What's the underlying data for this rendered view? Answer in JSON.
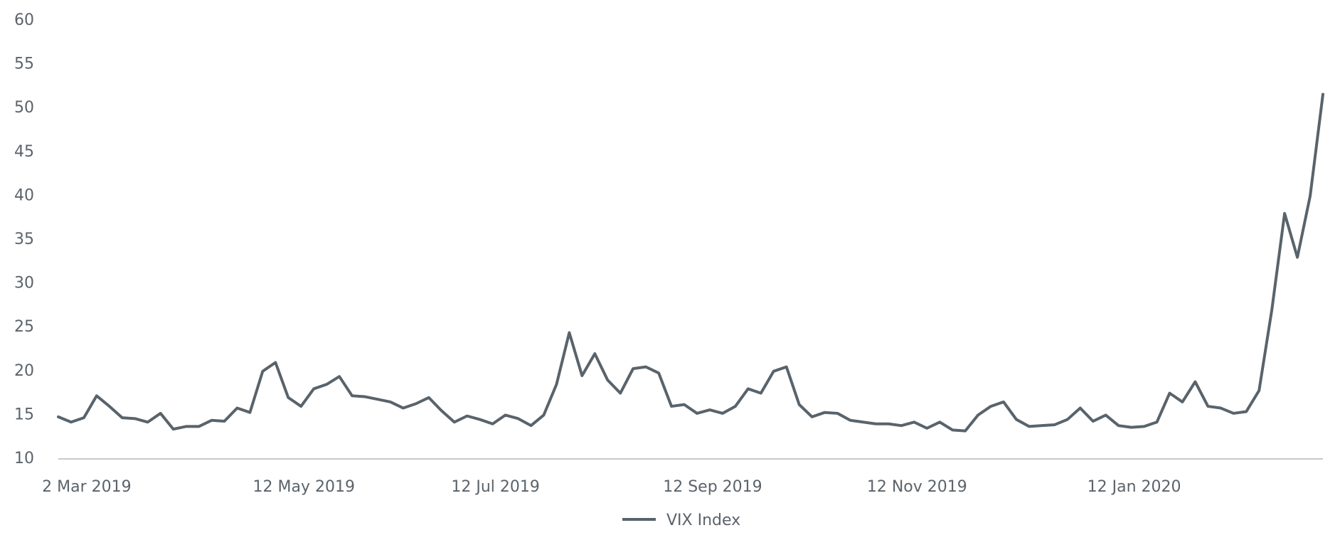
{
  "chart_data": {
    "type": "line",
    "categories": [
      null,
      null,
      "2 Mar 2019",
      null,
      null,
      null,
      null,
      null,
      null,
      null,
      null,
      null,
      null,
      null,
      null,
      null,
      null,
      null,
      null,
      "12 May 2019",
      null,
      null,
      null,
      null,
      null,
      null,
      null,
      null,
      null,
      null,
      null,
      null,
      null,
      null,
      "12 Jul 2019",
      null,
      null,
      null,
      null,
      null,
      null,
      null,
      null,
      null,
      null,
      null,
      null,
      null,
      null,
      null,
      null,
      "12 Sep 2019",
      null,
      null,
      null,
      null,
      null,
      null,
      null,
      null,
      null,
      null,
      null,
      null,
      null,
      null,
      null,
      "12 Nov 2019",
      null,
      null,
      null,
      null,
      null,
      null,
      null,
      null,
      null,
      null,
      null,
      null,
      null,
      null,
      null,
      null,
      "12 Jan 2020",
      null,
      null,
      null,
      null,
      null,
      null,
      null,
      null,
      null,
      null,
      null,
      null,
      null,
      null,
      null
    ],
    "series": [
      {
        "name": "VIX Index",
        "color": "#59636b",
        "values": [
          14.8,
          14.2,
          14.7,
          17.2,
          16.0,
          14.7,
          14.6,
          14.2,
          15.2,
          13.4,
          13.7,
          13.7,
          14.4,
          14.3,
          15.8,
          15.3,
          20.0,
          21.0,
          17.0,
          16.0,
          18.0,
          18.5,
          19.4,
          17.2,
          17.1,
          16.8,
          16.5,
          15.8,
          16.3,
          17.0,
          15.5,
          14.2,
          14.9,
          14.5,
          14.0,
          15.0,
          14.6,
          13.8,
          15.0,
          18.5,
          24.4,
          19.5,
          22.0,
          19.0,
          17.5,
          20.3,
          20.5,
          19.8,
          16.0,
          16.2,
          15.2,
          15.6,
          15.2,
          16.0,
          18.0,
          17.5,
          20.0,
          20.5,
          16.2,
          14.8,
          15.3,
          15.2,
          14.4,
          14.2,
          14.0,
          14.0,
          13.8,
          14.2,
          13.5,
          14.2,
          13.3,
          13.2,
          15.0,
          16.0,
          16.5,
          14.5,
          13.7,
          13.8,
          13.9,
          14.5,
          15.8,
          14.3,
          15.0,
          13.8,
          13.6,
          13.7,
          14.2,
          17.5,
          16.5,
          18.8,
          16.0,
          15.8,
          15.2,
          15.4,
          17.8,
          27.0,
          38.0,
          33.0,
          40.0,
          51.6
        ]
      }
    ],
    "ylim": [
      10,
      60
    ],
    "yticks": [
      10,
      15,
      20,
      25,
      30,
      35,
      40,
      45,
      50,
      55,
      60
    ],
    "grid": false,
    "legend": "bottom"
  }
}
